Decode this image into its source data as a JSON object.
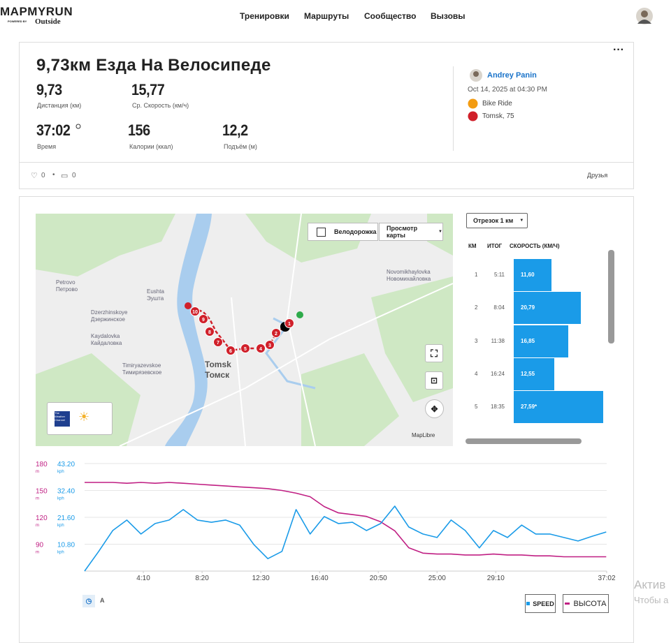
{
  "header": {
    "logo": "MAPMYRUN",
    "powered_by": "POWERED BY",
    "brand": "Outside",
    "nav": [
      "Тренировки",
      "Маршруты",
      "Сообщество",
      "Вызовы"
    ]
  },
  "workout": {
    "title": "9,73км Езда На Велосипеде",
    "stats": [
      {
        "value": "9,73",
        "label": "Дистанция (км)"
      },
      {
        "value": "15,77",
        "label": "Ср. Скорость (км/ч)"
      },
      {
        "value": "37:02",
        "label": "Время"
      },
      {
        "value": "156",
        "label": "Калории (ккал)"
      },
      {
        "value": "12,2",
        "label": "Подъём (м)"
      }
    ],
    "user": "Andrey Panin",
    "date": "Oct 14, 2025 at 04:30 PM",
    "activity": "Bike Ride",
    "location": "Tomsk, 75",
    "likes": "0",
    "comments": "0",
    "privacy": "Друзья"
  },
  "map": {
    "bike_lanes": "Велодорожка",
    "view": "Просмотр карты",
    "places": [
      {
        "en": "Petrovo",
        "ru": "Петрово"
      },
      {
        "en": "Eushta",
        "ru": "Эушта"
      },
      {
        "en": "Dzerzhinskoye",
        "ru": "Дзержинское"
      },
      {
        "en": "Kaydalovka",
        "ru": "Кайдаловка"
      },
      {
        "en": "Timiryazevskoe",
        "ru": "Тимирязевское"
      },
      {
        "en": "Tomsk",
        "ru": "Томск"
      },
      {
        "en": "Novomikhaylovka",
        "ru": "Новомихайловка"
      }
    ],
    "markers": [
      "1",
      "2",
      "3",
      "4",
      "5",
      "6",
      "7",
      "8",
      "9",
      "10"
    ],
    "weather": "The Weather Channel",
    "attribution": "MapLibre"
  },
  "splits": {
    "selector": "Отрезок 1 км",
    "headers": [
      "КМ",
      "ИТОГ",
      "СКОРОСТЬ (КМ/Ч)"
    ],
    "rows": [
      {
        "km": 1,
        "total": "5:11",
        "speed": 11.6,
        "speed_label": "11,60"
      },
      {
        "km": 2,
        "total": "8:04",
        "speed": 20.79,
        "speed_label": "20,79"
      },
      {
        "km": 3,
        "total": "11:38",
        "speed": 16.85,
        "speed_label": "16,85"
      },
      {
        "km": 4,
        "total": "16:24",
        "speed": 12.55,
        "speed_label": "12,55"
      },
      {
        "km": 5,
        "total": "18:35",
        "speed": 27.59,
        "speed_label": "27,59*"
      }
    ]
  },
  "chart_data": {
    "type": "line",
    "x": [
      0,
      60,
      120,
      180,
      240,
      300,
      360,
      420,
      480,
      540,
      600,
      660,
      720,
      780,
      840,
      900,
      960,
      1020,
      1080,
      1140,
      1200,
      1260,
      1320,
      1380,
      1440,
      1500,
      1560,
      1620,
      1680,
      1740,
      1800,
      1860,
      1920,
      1980,
      2040,
      2100,
      2160,
      2220
    ],
    "xlim": [
      0,
      2222
    ],
    "xticks": [
      {
        "value": 250,
        "label": "4:10"
      },
      {
        "value": 500,
        "label": "8:20"
      },
      {
        "value": 750,
        "label": "12:30"
      },
      {
        "value": 1000,
        "label": "16:40"
      },
      {
        "value": 1250,
        "label": "20:50"
      },
      {
        "value": 1500,
        "label": "25:00"
      },
      {
        "value": 1750,
        "label": "29:10"
      },
      {
        "value": 2222,
        "label": "37:02"
      }
    ],
    "ylim": [
      0,
      43.2
    ],
    "yticks": [
      {
        "value": 10.8,
        "label": "10.80"
      },
      {
        "value": 21.6,
        "label": "21.60"
      },
      {
        "value": 32.4,
        "label": "32.40"
      },
      {
        "value": 43.2,
        "label": "43.20"
      }
    ],
    "y_unit": "kph",
    "y2lim": [
      60,
      180
    ],
    "y2ticks": [
      90,
      120,
      150,
      180
    ],
    "y2_unit": "m",
    "grid": true,
    "series": [
      {
        "name": "SPEED",
        "color": "#1a9be8",
        "values": [
          0,
          7.9,
          16.3,
          20.5,
          14.9,
          19.1,
          20.5,
          24.7,
          20.5,
          19.6,
          20.5,
          18.5,
          10.7,
          5,
          7.9,
          24.7,
          14.9,
          21.9,
          19.1,
          19.6,
          16.3,
          19.1,
          26.1,
          17.7,
          14.9,
          13.5,
          20.5,
          16.3,
          9.3,
          16.3,
          13.5,
          18.5,
          14.9,
          14.9,
          13.5,
          12.1,
          14.0,
          15.7
        ]
      },
      {
        "name": "ВЫСОТА",
        "color": "#c01f83",
        "axis": "y2",
        "values": [
          159,
          159,
          159,
          158,
          159,
          158,
          159,
          158,
          157,
          156,
          155,
          154,
          153,
          152,
          150,
          147,
          143,
          132,
          125,
          123,
          121,
          115,
          105,
          86,
          80,
          79,
          79,
          78,
          78,
          79,
          78,
          78,
          77,
          77,
          76,
          76,
          76,
          76
        ]
      }
    ]
  },
  "watermark": [
    "Актив",
    "Чтобы а"
  ]
}
